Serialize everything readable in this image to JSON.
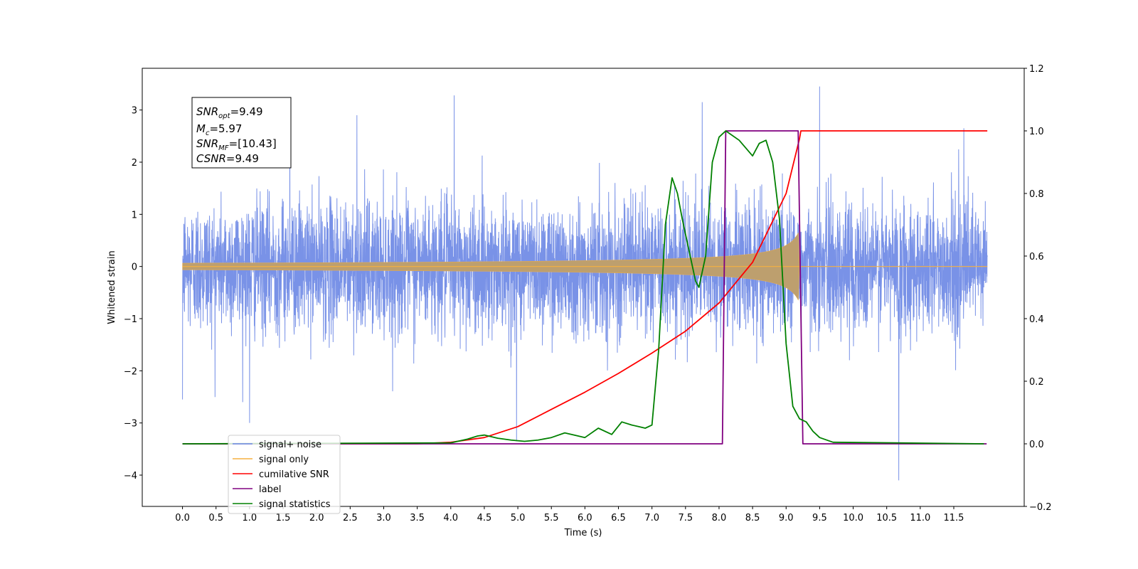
{
  "chart_data": {
    "type": "line",
    "xlabel": "Time (s)",
    "ylabel": "Whitened strain",
    "xlim": [
      -0.6,
      12.55
    ],
    "ylim": [
      -4.6,
      3.8
    ],
    "y2lim": [
      -0.2,
      1.2
    ],
    "x_ticks": [
      "0.0",
      "0.5",
      "1.0",
      "1.5",
      "2.0",
      "2.5",
      "3.0",
      "3.5",
      "4.0",
      "4.5",
      "5.0",
      "5.5",
      "6.0",
      "6.5",
      "7.0",
      "7.5",
      "8.0",
      "8.5",
      "9.0",
      "9.5",
      "10.0",
      "10.5",
      "11.0",
      "11.5"
    ],
    "y_ticks": [
      "3",
      "2",
      "1",
      "0",
      "−1",
      "−2",
      "−3",
      "−4"
    ],
    "y2_ticks": [
      "1.2",
      "1.0",
      "0.8",
      "0.6",
      "0.4",
      "0.2",
      "0.0",
      "−0.2"
    ],
    "grid": false,
    "legend_position": "lower-left",
    "annotation": {
      "snr_opt": "=9.49",
      "mc": "=5.97",
      "snr_mf": "=[10.43]",
      "csnr": "=9.49"
    },
    "series": [
      {
        "name": "signal+ noise",
        "color": "#6a86e4",
        "axis": "left",
        "x_range": [
          0.0,
          12.0
        ],
        "noise_sigma": 1.0,
        "spikes": [
          [
            0.0,
            -2.55
          ],
          [
            1.0,
            -3.0
          ],
          [
            4.05,
            3.28
          ],
          [
            4.98,
            -3.35
          ],
          [
            7.75,
            3.15
          ],
          [
            9.5,
            3.45
          ],
          [
            10.68,
            -4.1
          ],
          [
            11.65,
            2.65
          ],
          [
            1.6,
            2.85
          ],
          [
            2.6,
            2.9
          ]
        ]
      },
      {
        "name": "signal only",
        "color": "#f5b041",
        "axis": "left",
        "x_range": [
          0.0,
          12.0
        ],
        "chirp_end": 9.2,
        "peak_amplitude": 0.7
      },
      {
        "name": "cumilative SNR",
        "color": "#ff0000",
        "axis": "right",
        "x": [
          0.0,
          3.5,
          4.0,
          4.5,
          5.0,
          5.5,
          6.0,
          6.5,
          7.0,
          7.5,
          8.0,
          8.5,
          9.0,
          9.2,
          9.22,
          12.0
        ],
        "y": [
          0.0,
          0.0,
          0.005,
          0.02,
          0.055,
          0.11,
          0.165,
          0.225,
          0.29,
          0.36,
          0.45,
          0.58,
          0.8,
          0.975,
          1.0,
          1.0
        ]
      },
      {
        "name": "label",
        "color": "#800080",
        "axis": "right",
        "x": [
          0.0,
          8.05,
          8.1,
          9.18,
          9.25,
          11.99
        ],
        "y": [
          0.0,
          0.0,
          1.0,
          1.0,
          0.0,
          0.0
        ]
      },
      {
        "name": "signal statistics",
        "color": "#008000",
        "axis": "right",
        "x": [
          0.0,
          4.0,
          4.25,
          4.4,
          4.5,
          4.7,
          4.9,
          5.1,
          5.3,
          5.5,
          5.7,
          5.9,
          6.0,
          6.2,
          6.4,
          6.55,
          6.7,
          6.8,
          6.9,
          7.0,
          7.1,
          7.2,
          7.3,
          7.38,
          7.45,
          7.55,
          7.65,
          7.7,
          7.8,
          7.9,
          8.0,
          8.1,
          8.3,
          8.5,
          8.6,
          8.7,
          8.8,
          8.9,
          9.0,
          9.1,
          9.2,
          9.3,
          9.4,
          9.5,
          9.7,
          11.95
        ],
        "y": [
          0.0,
          0.003,
          0.015,
          0.025,
          0.028,
          0.018,
          0.012,
          0.008,
          0.012,
          0.02,
          0.035,
          0.025,
          0.02,
          0.05,
          0.03,
          0.07,
          0.06,
          0.055,
          0.05,
          0.06,
          0.3,
          0.7,
          0.85,
          0.8,
          0.72,
          0.62,
          0.52,
          0.5,
          0.6,
          0.9,
          0.98,
          1.0,
          0.97,
          0.92,
          0.96,
          0.97,
          0.9,
          0.72,
          0.32,
          0.12,
          0.08,
          0.07,
          0.04,
          0.02,
          0.005,
          0.0
        ]
      }
    ]
  }
}
